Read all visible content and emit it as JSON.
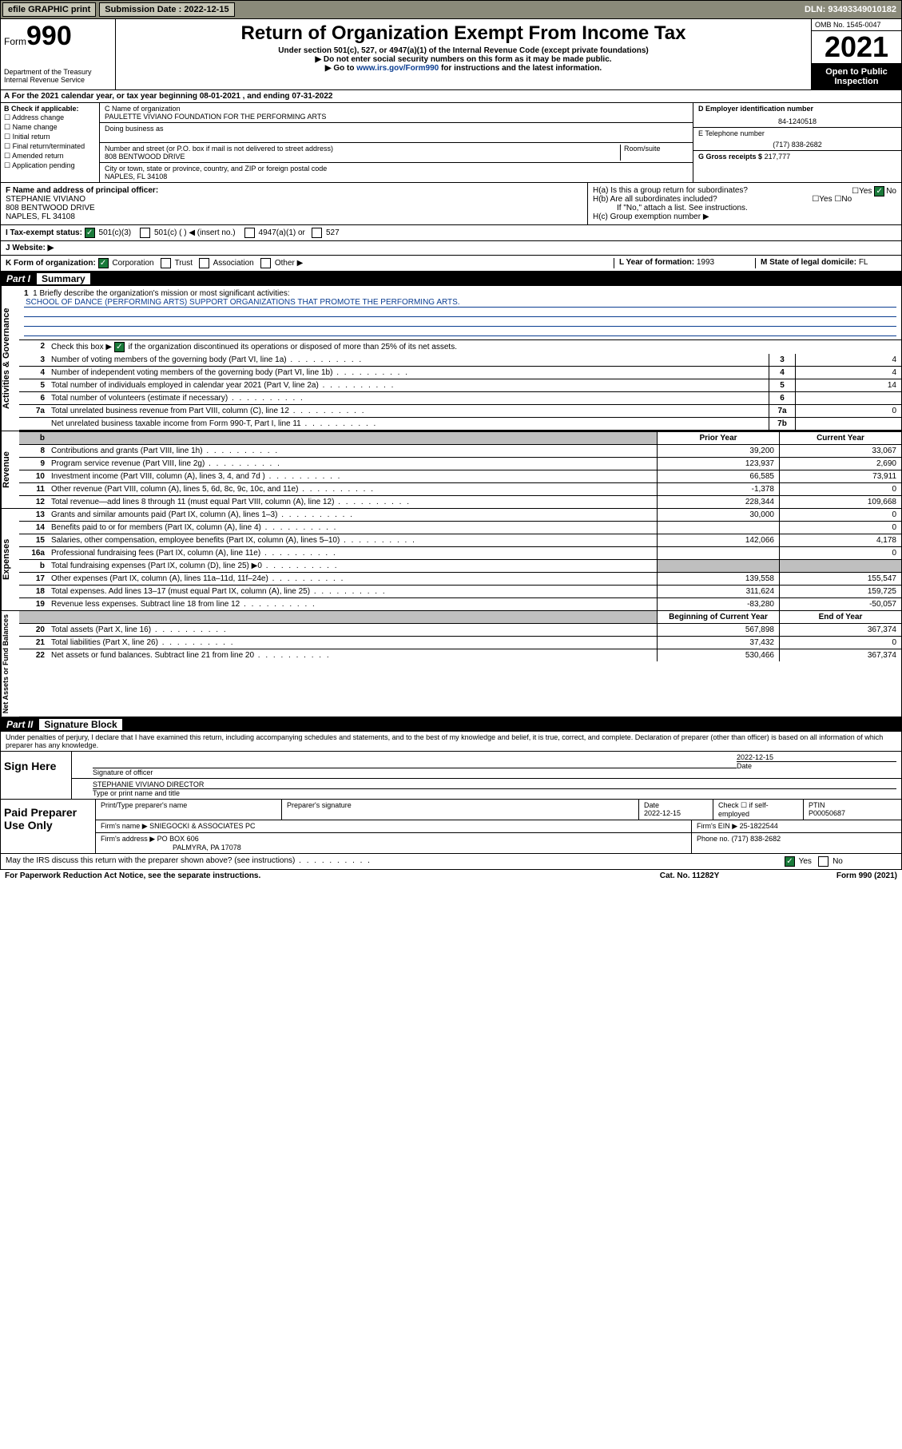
{
  "topbar": {
    "efile": "efile GRAPHIC print",
    "submission": "Submission Date : 2022-12-15",
    "dln": "DLN: 93493349010182"
  },
  "header": {
    "form_prefix": "Form",
    "form_number": "990",
    "dept": "Department of the Treasury",
    "irs": "Internal Revenue Service",
    "title": "Return of Organization Exempt From Income Tax",
    "sub1": "Under section 501(c), 527, or 4947(a)(1) of the Internal Revenue Code (except private foundations)",
    "sub2": "▶ Do not enter social security numbers on this form as it may be made public.",
    "sub3_pre": "▶ Go to ",
    "sub3_link": "www.irs.gov/Form990",
    "sub3_post": " for instructions and the latest information.",
    "omb": "OMB No. 1545-0047",
    "year": "2021",
    "inspection": "Open to Public Inspection"
  },
  "row_a": "A For the 2021 calendar year, or tax year beginning 08-01-2021   , and ending 07-31-2022",
  "check_b_label": "B Check if applicable:",
  "check_b": {
    "addr": "Address change",
    "name": "Name change",
    "initial": "Initial return",
    "final": "Final return/terminated",
    "amended": "Amended return",
    "app": "Application pending"
  },
  "org": {
    "name_label": "C Name of organization",
    "name": "PAULETTE VIVIANO FOUNDATION FOR THE PERFORMING ARTS",
    "dba_label": "Doing business as",
    "addr_label": "Number and street (or P.O. box if mail is not delivered to street address)",
    "room_label": "Room/suite",
    "addr": "808 BENTWOOD DRIVE",
    "city_label": "City or town, state or province, country, and ZIP or foreign postal code",
    "city": "NAPLES, FL  34108"
  },
  "right": {
    "ein_label": "D Employer identification number",
    "ein": "84-1240518",
    "phone_label": "E Telephone number",
    "phone": "(717) 838-2682",
    "gross_label": "G Gross receipts $",
    "gross": "217,777"
  },
  "f": {
    "label": "F Name and address of principal officer:",
    "name": "STEPHANIE VIVIANO",
    "addr1": "808 BENTWOOD DRIVE",
    "addr2": "NAPLES, FL  34108"
  },
  "h": {
    "a": "H(a)  Is this a group return for subordinates?",
    "b": "H(b)  Are all subordinates included?",
    "note": "If \"No,\" attach a list. See instructions.",
    "c": "H(c)  Group exemption number ▶"
  },
  "i": {
    "label": "I   Tax-exempt status:",
    "opt1": "501(c)(3)",
    "opt2": "501(c) (  ) ◀ (insert no.)",
    "opt3": "4947(a)(1) or",
    "opt4": "527"
  },
  "j": "J   Website: ▶",
  "k": {
    "label": "K Form of organization:",
    "corp": "Corporation",
    "trust": "Trust",
    "assoc": "Association",
    "other": "Other ▶",
    "l_label": "L Year of formation:",
    "l_val": "1993",
    "m_label": "M State of legal domicile:",
    "m_val": "FL"
  },
  "parts": {
    "p1": "Part I",
    "p1_title": "Summary",
    "p2": "Part II",
    "p2_title": "Signature Block"
  },
  "summary": {
    "mission_label": "1   Briefly describe the organization's mission or most significant activities:",
    "mission": "SCHOOL OF DANCE (PERFORMING ARTS) SUPPORT ORGANIZATIONS THAT PROMOTE THE PERFORMING ARTS.",
    "line2": "Check this box ▶        if the organization discontinued its operations or disposed of more than 25% of its net assets.",
    "lines_single": [
      {
        "n": "3",
        "d": "Number of voting members of the governing body (Part VI, line 1a)",
        "box": "3",
        "v": "4"
      },
      {
        "n": "4",
        "d": "Number of independent voting members of the governing body (Part VI, line 1b)",
        "box": "4",
        "v": "4"
      },
      {
        "n": "5",
        "d": "Total number of individuals employed in calendar year 2021 (Part V, line 2a)",
        "box": "5",
        "v": "14"
      },
      {
        "n": "6",
        "d": "Total number of volunteers (estimate if necessary)",
        "box": "6",
        "v": ""
      },
      {
        "n": "7a",
        "d": "Total unrelated business revenue from Part VIII, column (C), line 12",
        "box": "7a",
        "v": "0"
      },
      {
        "n": "",
        "d": "Net unrelated business taxable income from Form 990-T, Part I, line 11",
        "box": "7b",
        "v": ""
      }
    ],
    "prior_label": "Prior Year",
    "cur_label": "Current Year",
    "revenue": [
      {
        "n": "8",
        "d": "Contributions and grants (Part VIII, line 1h)",
        "p": "39,200",
        "c": "33,067"
      },
      {
        "n": "9",
        "d": "Program service revenue (Part VIII, line 2g)",
        "p": "123,937",
        "c": "2,690"
      },
      {
        "n": "10",
        "d": "Investment income (Part VIII, column (A), lines 3, 4, and 7d )",
        "p": "66,585",
        "c": "73,911"
      },
      {
        "n": "11",
        "d": "Other revenue (Part VIII, column (A), lines 5, 6d, 8c, 9c, 10c, and 11e)",
        "p": "-1,378",
        "c": "0"
      },
      {
        "n": "12",
        "d": "Total revenue—add lines 8 through 11 (must equal Part VIII, column (A), line 12)",
        "p": "228,344",
        "c": "109,668"
      }
    ],
    "expenses": [
      {
        "n": "13",
        "d": "Grants and similar amounts paid (Part IX, column (A), lines 1–3)",
        "p": "30,000",
        "c": "0"
      },
      {
        "n": "14",
        "d": "Benefits paid to or for members (Part IX, column (A), line 4)",
        "p": "",
        "c": "0"
      },
      {
        "n": "15",
        "d": "Salaries, other compensation, employee benefits (Part IX, column (A), lines 5–10)",
        "p": "142,066",
        "c": "4,178"
      },
      {
        "n": "16a",
        "d": "Professional fundraising fees (Part IX, column (A), line 11e)",
        "p": "",
        "c": "0"
      },
      {
        "n": "b",
        "d": "Total fundraising expenses (Part IX, column (D), line 25) ▶0",
        "p": "",
        "c": "",
        "grey": true
      },
      {
        "n": "17",
        "d": "Other expenses (Part IX, column (A), lines 11a–11d, 11f–24e)",
        "p": "139,558",
        "c": "155,547"
      },
      {
        "n": "18",
        "d": "Total expenses. Add lines 13–17 (must equal Part IX, column (A), line 25)",
        "p": "311,624",
        "c": "159,725"
      },
      {
        "n": "19",
        "d": "Revenue less expenses. Subtract line 18 from line 12",
        "p": "-83,280",
        "c": "-50,057"
      }
    ],
    "beg_label": "Beginning of Current Year",
    "end_label": "End of Year",
    "net": [
      {
        "n": "20",
        "d": "Total assets (Part X, line 16)",
        "p": "567,898",
        "c": "367,374"
      },
      {
        "n": "21",
        "d": "Total liabilities (Part X, line 26)",
        "p": "37,432",
        "c": "0"
      },
      {
        "n": "22",
        "d": "Net assets or fund balances. Subtract line 21 from line 20",
        "p": "530,466",
        "c": "367,374"
      }
    ]
  },
  "sig": {
    "declare": "Under penalties of perjury, I declare that I have examined this return, including accompanying schedules and statements, and to the best of my knowledge and belief, it is true, correct, and complete. Declaration of preparer (other than officer) is based on all information of which preparer has any knowledge.",
    "sign_here": "Sign Here",
    "sig_officer": "Signature of officer",
    "date": "2022-12-15",
    "date_label": "Date",
    "name_title": "STEPHANIE VIVIANO DIRECTOR",
    "name_title_label": "Type or print name and title"
  },
  "paid": {
    "title": "Paid Preparer Use Only",
    "h_name": "Print/Type preparer's name",
    "h_sig": "Preparer's signature",
    "h_date": "Date",
    "h_date_v": "2022-12-15",
    "h_check": "Check         if self-employed",
    "h_ptin": "PTIN",
    "ptin": "P00050687",
    "firm_name_l": "Firm's name     ▶",
    "firm_name": "SNIEGOCKI & ASSOCIATES PC",
    "firm_ein_l": "Firm's EIN ▶",
    "firm_ein": "25-1822544",
    "firm_addr_l": "Firm's address ▶",
    "firm_addr1": "PO BOX 606",
    "firm_addr2": "PALMYRA, PA  17078",
    "phone_l": "Phone no.",
    "phone": "(717) 838-2682"
  },
  "bottom": {
    "discuss": "May the IRS discuss this return with the preparer shown above? (see instructions)",
    "yes": "Yes",
    "no": "No",
    "paperwork": "For Paperwork Reduction Act Notice, see the separate instructions.",
    "cat": "Cat. No. 11282Y",
    "form": "Form 990 (2021)"
  },
  "vlabels": {
    "gov": "Activities & Governance",
    "rev": "Revenue",
    "exp": "Expenses",
    "net": "Net Assets or Fund Balances"
  }
}
